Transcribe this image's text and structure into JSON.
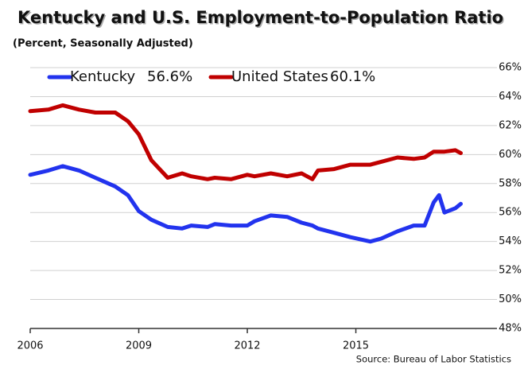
{
  "chart_data": {
    "type": "line",
    "title": "Kentucky and U.S. Employment-to-Population Ratio",
    "subtitle": "(Percent, Seasonally Adjusted)",
    "source": "Source: Bureau of Labor Statistics",
    "x": [
      2006,
      2006.5,
      2006.9,
      2007.35,
      2007.8,
      2008.35,
      2008.7,
      2009.0,
      2009.35,
      2009.8,
      2010.2,
      2010.45,
      2010.9,
      2011.1,
      2011.55,
      2012.0,
      2012.2,
      2012.65,
      2013.1,
      2013.5,
      2013.8,
      2013.95,
      2014.4,
      2014.85,
      2015.4,
      2015.7,
      2016.15,
      2016.6,
      2016.9,
      2017.15,
      2017.3,
      2017.45,
      2017.75,
      2017.9
    ],
    "series": [
      {
        "name": "Kentucky",
        "legend_value": "56.6%",
        "color": "#2233ee",
        "values": [
          58.6,
          58.9,
          59.2,
          58.9,
          58.4,
          57.8,
          57.2,
          56.1,
          55.5,
          55.0,
          54.9,
          55.1,
          55.0,
          55.2,
          55.1,
          55.1,
          55.4,
          55.8,
          55.7,
          55.3,
          55.1,
          54.9,
          54.6,
          54.3,
          54.0,
          54.2,
          54.7,
          55.1,
          55.1,
          56.7,
          57.2,
          56.0,
          56.3,
          56.6
        ]
      },
      {
        "name": "United States",
        "legend_value": "60.1%",
        "color": "#c00000",
        "values": [
          63.0,
          63.1,
          63.4,
          63.1,
          62.9,
          62.9,
          62.3,
          61.4,
          59.6,
          58.4,
          58.7,
          58.5,
          58.3,
          58.4,
          58.3,
          58.6,
          58.5,
          58.7,
          58.5,
          58.7,
          58.3,
          58.9,
          59.0,
          59.3,
          59.3,
          59.5,
          59.8,
          59.7,
          59.8,
          60.2,
          60.2,
          60.2,
          60.3,
          60.1
        ]
      }
    ],
    "xlim": [
      2006,
      2018.9
    ],
    "xticks": [
      2006,
      2009,
      2012,
      2015
    ],
    "ylim": [
      48,
      66
    ],
    "yticks": [
      {
        "value": 48,
        "label": "48%"
      },
      {
        "value": 50,
        "label": "50%"
      },
      {
        "value": 52,
        "label": "52%"
      },
      {
        "value": 54,
        "label": "54%"
      },
      {
        "value": 56,
        "label": "56%"
      },
      {
        "value": 58,
        "label": "58%"
      },
      {
        "value": 60,
        "label": "60%"
      },
      {
        "value": 62,
        "label": "62%"
      },
      {
        "value": 64,
        "label": "64%"
      },
      {
        "value": 66,
        "label": "66%"
      }
    ],
    "grid": true
  }
}
